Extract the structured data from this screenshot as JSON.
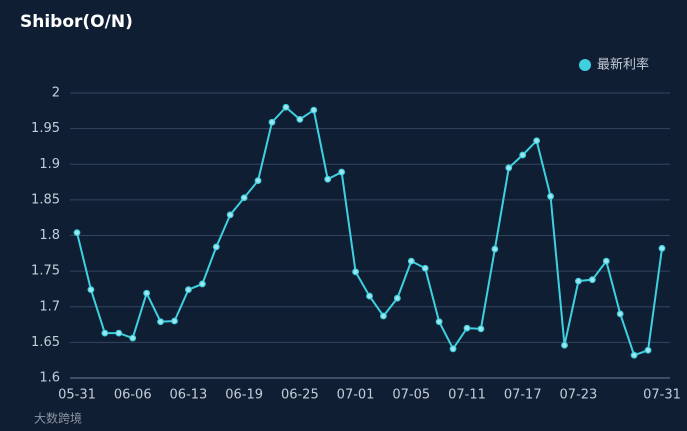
{
  "chart_data": {
    "type": "line",
    "title": "Shibor(O/N)",
    "categories": [
      "05-31",
      null,
      null,
      null,
      "06-06",
      null,
      null,
      null,
      "06-13",
      null,
      null,
      null,
      "06-19",
      null,
      null,
      null,
      "06-25",
      null,
      null,
      null,
      "07-01",
      null,
      null,
      null,
      "07-05",
      null,
      null,
      null,
      "07-11",
      null,
      null,
      null,
      "07-17",
      null,
      null,
      null,
      "07-23",
      null,
      null,
      null,
      null,
      null,
      "07-31"
    ],
    "series": [
      {
        "name": "最新利率",
        "color": "#3fd0df",
        "values": [
          1.804,
          1.724,
          1.663,
          1.663,
          1.656,
          1.719,
          1.679,
          1.68,
          1.724,
          1.732,
          1.784,
          1.829,
          1.853,
          1.877,
          1.959,
          1.98,
          1.963,
          1.976,
          1.879,
          1.889,
          1.749,
          1.715,
          1.687,
          1.712,
          1.764,
          1.754,
          1.679,
          1.641,
          1.67,
          1.669,
          1.781,
          1.895,
          1.913,
          1.933,
          1.855,
          1.646,
          1.736,
          1.738,
          1.764,
          1.69,
          1.632,
          1.639,
          1.782
        ]
      }
    ],
    "ylim": [
      1.6,
      2
    ],
    "yticks": [
      1.6,
      1.65,
      1.7,
      1.75,
      1.8,
      1.85,
      1.9,
      1.95,
      2
    ],
    "grid": true,
    "legend": "top-right"
  },
  "watermark": "大数跨境"
}
